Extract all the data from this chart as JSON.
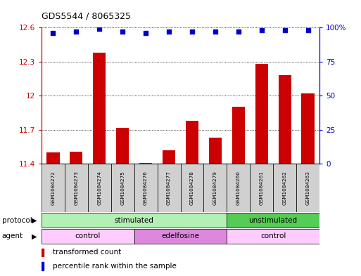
{
  "title": "GDS5544 / 8065325",
  "samples": [
    "GSM1084272",
    "GSM1084273",
    "GSM1084274",
    "GSM1084275",
    "GSM1084276",
    "GSM1084277",
    "GSM1084278",
    "GSM1084279",
    "GSM1084260",
    "GSM1084261",
    "GSM1084262",
    "GSM1084263"
  ],
  "bar_values": [
    11.5,
    11.51,
    12.38,
    11.72,
    11.41,
    11.52,
    11.78,
    11.63,
    11.9,
    12.28,
    12.18,
    12.02
  ],
  "percentile_values": [
    96,
    97,
    99,
    97,
    96,
    97,
    97,
    97,
    97,
    98,
    98,
    98
  ],
  "bar_color": "#cc0000",
  "percentile_color": "#0000cc",
  "ylim_left": [
    11.4,
    12.6
  ],
  "ylim_right": [
    0,
    100
  ],
  "yticks_left": [
    11.4,
    11.7,
    12.0,
    12.3,
    12.6
  ],
  "yticks_right": [
    0,
    25,
    50,
    75,
    100
  ],
  "ytick_labels_left": [
    "11.4",
    "11.7",
    "12",
    "12.3",
    "12.6"
  ],
  "ytick_labels_right": [
    "0",
    "25",
    "50",
    "75",
    "100%"
  ],
  "protocol_groups": [
    {
      "label": "stimulated",
      "start": 0,
      "end": 8,
      "color": "#b3f0b3"
    },
    {
      "label": "unstimulated",
      "start": 8,
      "end": 12,
      "color": "#55cc55"
    }
  ],
  "agent_groups": [
    {
      "label": "control",
      "start": 0,
      "end": 4,
      "color": "#ffccff"
    },
    {
      "label": "edelfosine",
      "start": 4,
      "end": 8,
      "color": "#dd88dd"
    },
    {
      "label": "control",
      "start": 8,
      "end": 12,
      "color": "#ffccff"
    }
  ],
  "legend_bar_label": "transformed count",
  "legend_pct_label": "percentile rank within the sample",
  "protocol_label": "protocol",
  "agent_label": "agent",
  "left_axis_color": "#cc0000",
  "right_axis_color": "#0000cc",
  "sample_box_color": "#d0d0d0"
}
